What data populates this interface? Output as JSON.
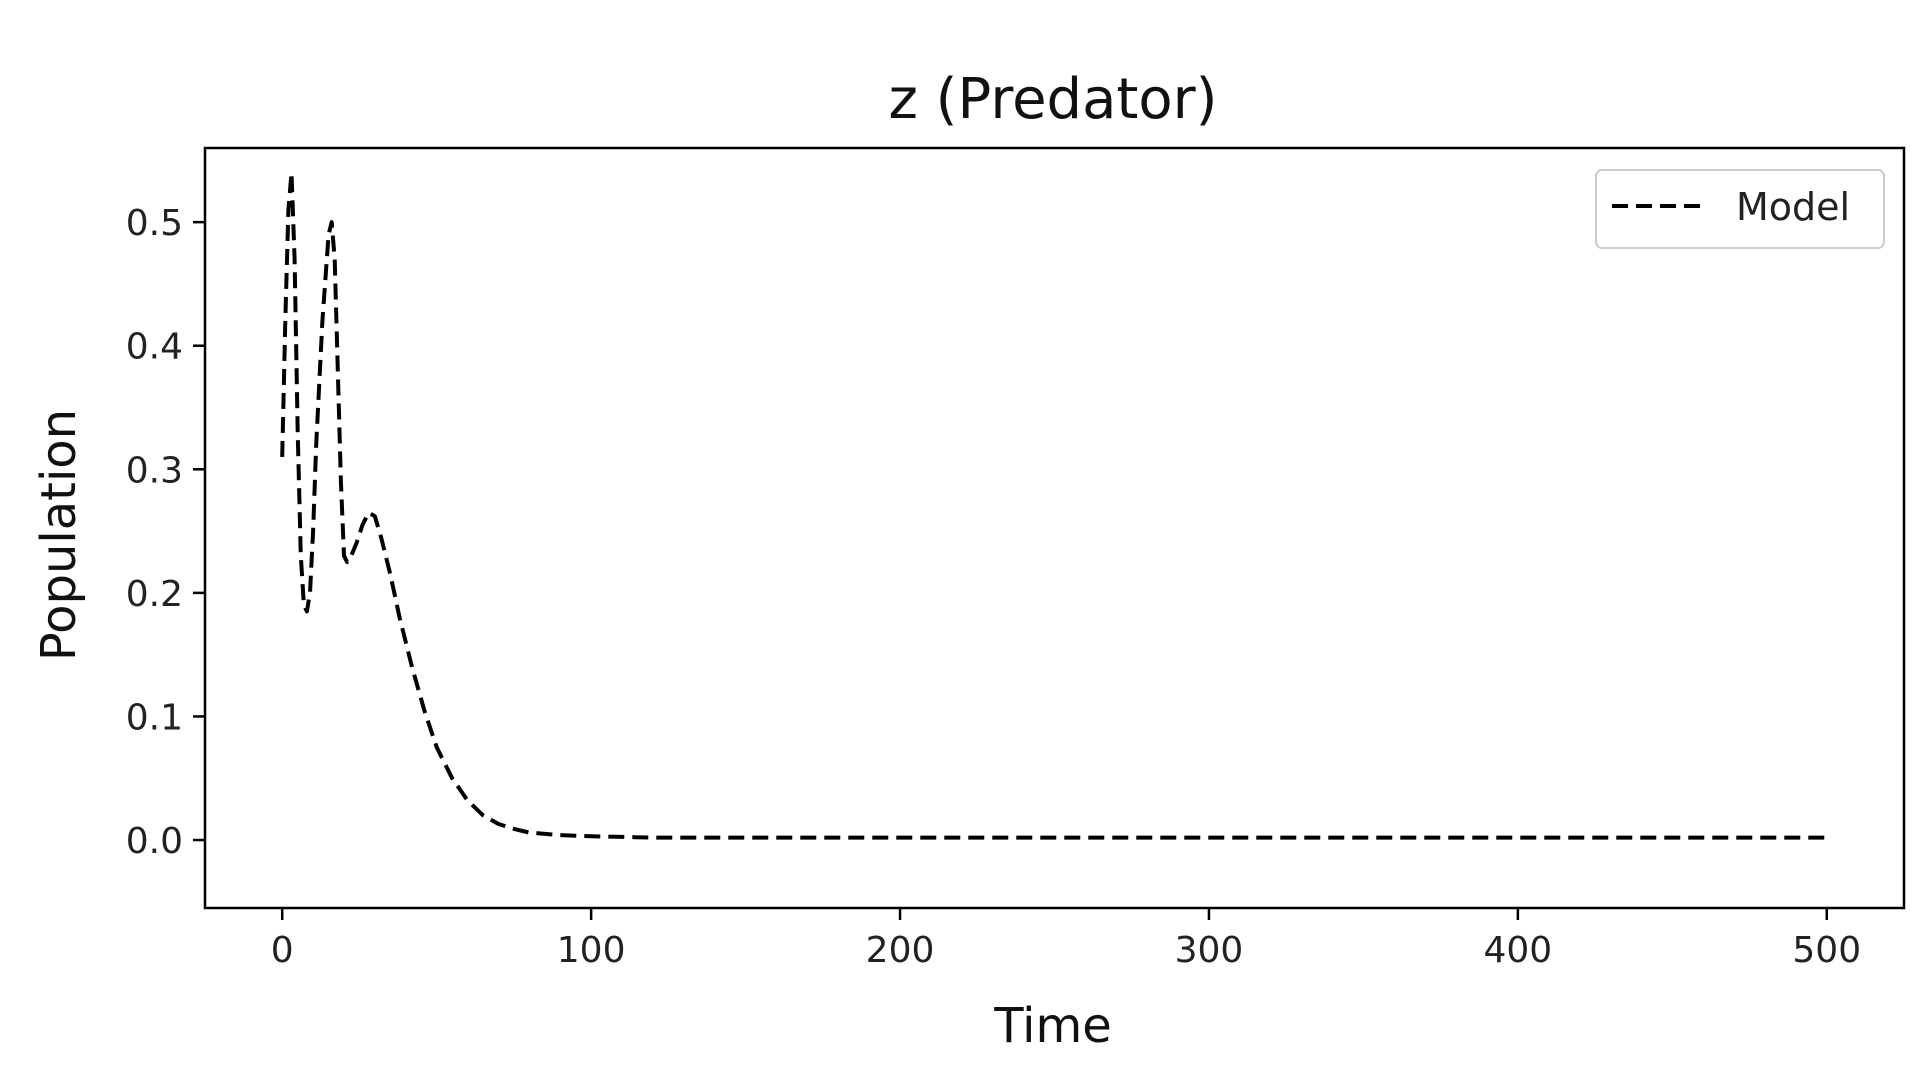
{
  "chart_data": {
    "type": "line",
    "title": "z (Predator)",
    "xlabel": "Time",
    "ylabel": "Population",
    "xlim": [
      -25,
      525
    ],
    "ylim": [
      -0.055,
      0.56
    ],
    "x_ticks": [
      0,
      100,
      200,
      300,
      400,
      500
    ],
    "y_ticks": [
      0.0,
      0.1,
      0.2,
      0.3,
      0.4,
      0.5
    ],
    "x_tick_labels": [
      "0",
      "100",
      "200",
      "300",
      "400",
      "500"
    ],
    "y_tick_labels": [
      "0.0",
      "0.1",
      "0.2",
      "0.3",
      "0.4",
      "0.5"
    ],
    "grid": false,
    "legend": {
      "position": "top-right",
      "entries": [
        "Model"
      ]
    },
    "series": [
      {
        "name": "Model",
        "color": "#000000",
        "style": "dashed",
        "x": [
          0,
          1,
          2,
          3,
          4,
          5,
          6,
          7,
          8,
          9,
          10,
          11,
          13,
          15,
          16,
          17,
          18,
          19,
          20,
          21,
          22,
          24,
          26,
          28,
          30,
          32,
          35,
          38,
          42,
          46,
          50,
          55,
          60,
          65,
          70,
          75,
          80,
          90,
          100,
          110,
          120,
          150,
          200,
          250,
          300,
          350,
          400,
          450,
          500
        ],
        "y": [
          0.31,
          0.42,
          0.51,
          0.54,
          0.47,
          0.33,
          0.23,
          0.19,
          0.185,
          0.2,
          0.25,
          0.32,
          0.42,
          0.49,
          0.5,
          0.47,
          0.38,
          0.29,
          0.23,
          0.225,
          0.228,
          0.24,
          0.255,
          0.265,
          0.262,
          0.245,
          0.215,
          0.18,
          0.14,
          0.105,
          0.075,
          0.05,
          0.032,
          0.02,
          0.013,
          0.009,
          0.006,
          0.004,
          0.003,
          0.0025,
          0.002,
          0.002,
          0.002,
          0.002,
          0.002,
          0.002,
          0.002,
          0.002,
          0.002
        ]
      }
    ]
  }
}
